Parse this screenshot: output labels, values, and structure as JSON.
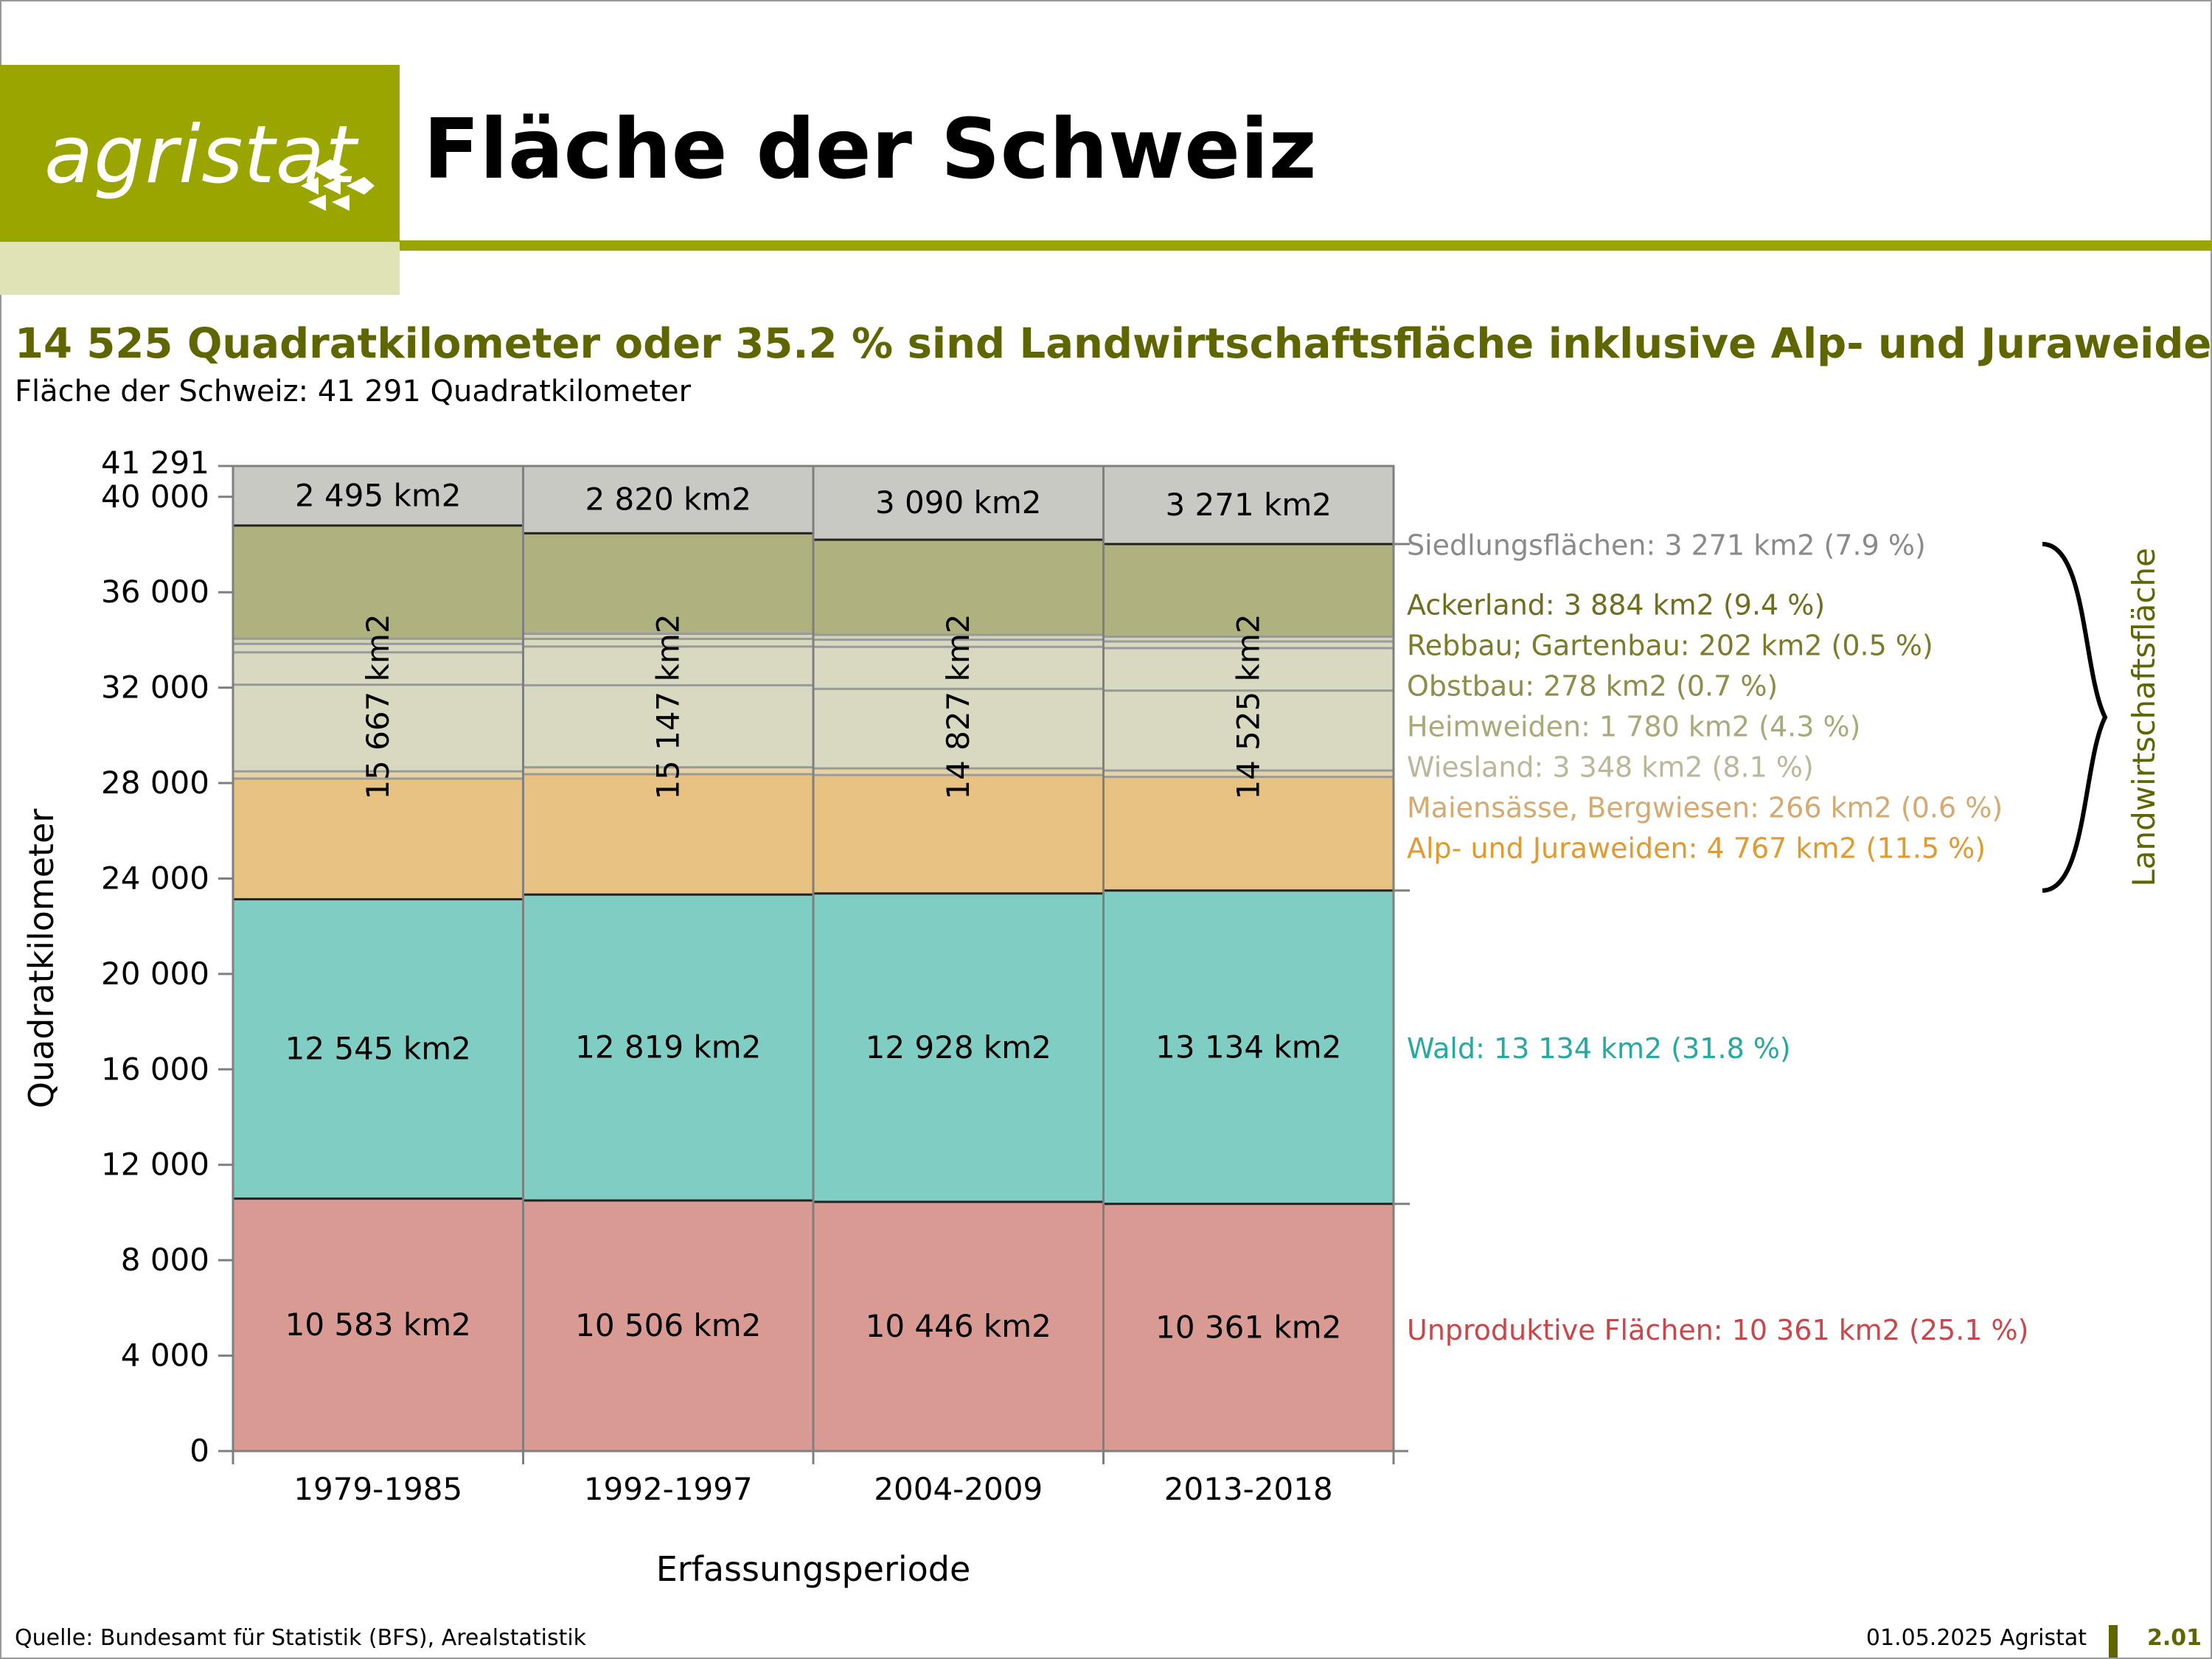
{
  "brand": {
    "name": "agristat",
    "color_primary": "#9aa500",
    "color_light": "#e0e4b4",
    "color_dark": "#5f6600"
  },
  "header": {
    "title": "Fläche der Schweiz"
  },
  "headline": "14 525 Quadratkilometer oder 35.2 % sind Landwirtschaftsfläche inklusive Alp- und Juraweiden.",
  "subline": "Fläche der Schweiz: 41 291 Quadratkilometer",
  "footer": {
    "source": "Quelle: Bundesamt für Statistik (BFS), Arealstatistik",
    "date": "01.05.2025 Agristat",
    "page": "2.01"
  },
  "chart_data": {
    "type": "bar",
    "stacked": true,
    "categories": [
      "1979-1985",
      "1992-1997",
      "2004-2009",
      "2013-2018"
    ],
    "xlabel": "Erfassungsperiode",
    "ylabel": "Quadratkilometer",
    "ylim": [
      0,
      41291
    ],
    "yticks": [
      0,
      4000,
      8000,
      12000,
      16000,
      20000,
      24000,
      28000,
      32000,
      36000,
      40000,
      41291
    ],
    "ytick_labels": [
      "0",
      "4 000",
      "8 000",
      "12 000",
      "16 000",
      "20 000",
      "24 000",
      "28 000",
      "32 000",
      "36 000",
      "40 000",
      "41 291"
    ],
    "series": [
      {
        "name": "Unproduktive Flächen",
        "color": "#d99a94",
        "values": [
          10583,
          10506,
          10446,
          10361
        ]
      },
      {
        "name": "Wald",
        "color": "#80cdc4",
        "values": [
          12545,
          12819,
          12928,
          13134
        ]
      },
      {
        "name": "Alp- und Juraweiden",
        "color": "#e8c283",
        "values": [
          5059,
          5046,
          4963,
          4767
        ]
      },
      {
        "name": "Maiensässe, Bergwiesen",
        "color": "#e4d3a5",
        "values": [
          305,
          289,
          278,
          266
        ]
      },
      {
        "name": "Wiesland",
        "color": "#d8d9c0",
        "values": [
          3631,
          3439,
          3335,
          3348
        ]
      },
      {
        "name": "Heimweiden",
        "color": "#d8d9c0",
        "values": [
          1355,
          1623,
          1763,
          1780
        ]
      },
      {
        "name": "Obstbau",
        "color": "#d8d9c0",
        "values": [
          355,
          323,
          295,
          278
        ]
      },
      {
        "name": "Rebbau; Gartenbau",
        "color": "#d3d4b8",
        "values": [
          220,
          213,
          206,
          202
        ]
      },
      {
        "name": "Ackerland",
        "color": "#afb17f",
        "values": [
          4742,
          4214,
          3987,
          3884
        ]
      },
      {
        "name": "Siedlungsflächen",
        "color": "#c9c9c4",
        "values": [
          2495,
          2820,
          3090,
          3271
        ]
      }
    ],
    "segment_labels": {
      "unproductive": [
        "10 583 km2",
        "10 506 km2",
        "10 446 km2",
        "10 361 km2"
      ],
      "forest": [
        "12 545 km2",
        "12 819 km2",
        "12 928 km2",
        "13 134 km2"
      ],
      "agricultural": [
        "15 667 km2",
        "15 147 km2",
        "14 827 km2",
        "14 525 km2"
      ],
      "settlement": [
        "2 495 km2",
        "2 820 km2",
        "3 090 km2",
        "3 271 km2"
      ]
    },
    "legend": [
      {
        "text": "Siedlungsflächen: 3 271 km2 (7.9 %)",
        "color": "#8a8a8a",
        "value": 38000
      },
      {
        "text": "Ackerland: 3 884 km2 (9.4 %)",
        "color": "#6e6e1e",
        "value": 35500
      },
      {
        "text": "Rebbau; Gartenbau: 202 km2 (0.5 %)",
        "color": "#7b7b2a",
        "value": 33800
      },
      {
        "text": "Obstbau: 278 km2 (0.7 %)",
        "color": "#8d8d4a",
        "value": 32100
      },
      {
        "text": "Heimweiden: 1 780 km2 (4.3 %)",
        "color": "#a9a97a",
        "value": 30400
      },
      {
        "text": "Wiesland: 3 348 km2 (8.1 %)",
        "color": "#b9b99a",
        "value": 28700
      },
      {
        "text": "Maiensässe, Bergwiesen: 266 km2 (0.6 %)",
        "color": "#d4aa72",
        "value": 27000
      },
      {
        "text": "Alp- und Juraweiden: 4 767 km2 (11.5 %)",
        "color": "#e09a30",
        "value": 25300
      },
      {
        "text": "Wald: 13 134 km2 (31.8 %)",
        "color": "#27a8a0",
        "value": 16900
      },
      {
        "text": "Unproduktive Flächen: 10 361 km2 (25.1 %)",
        "color": "#c8474a",
        "value": 5100
      }
    ],
    "brace_label": "Landwirtschaftsfläche",
    "brace_range": [
      23495,
      38020
    ],
    "grid": false
  }
}
